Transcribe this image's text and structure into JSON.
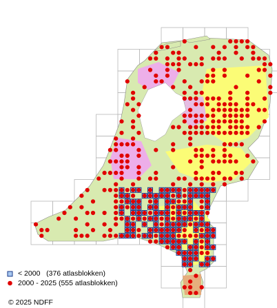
{
  "legend": [
    {
      "label": "< 2000   (376 atlasblokken)"
    },
    {
      "label": "2000 - 2025 (555 atlasblokken)"
    }
  ],
  "copyright": "© 2025 NDFF"
}
